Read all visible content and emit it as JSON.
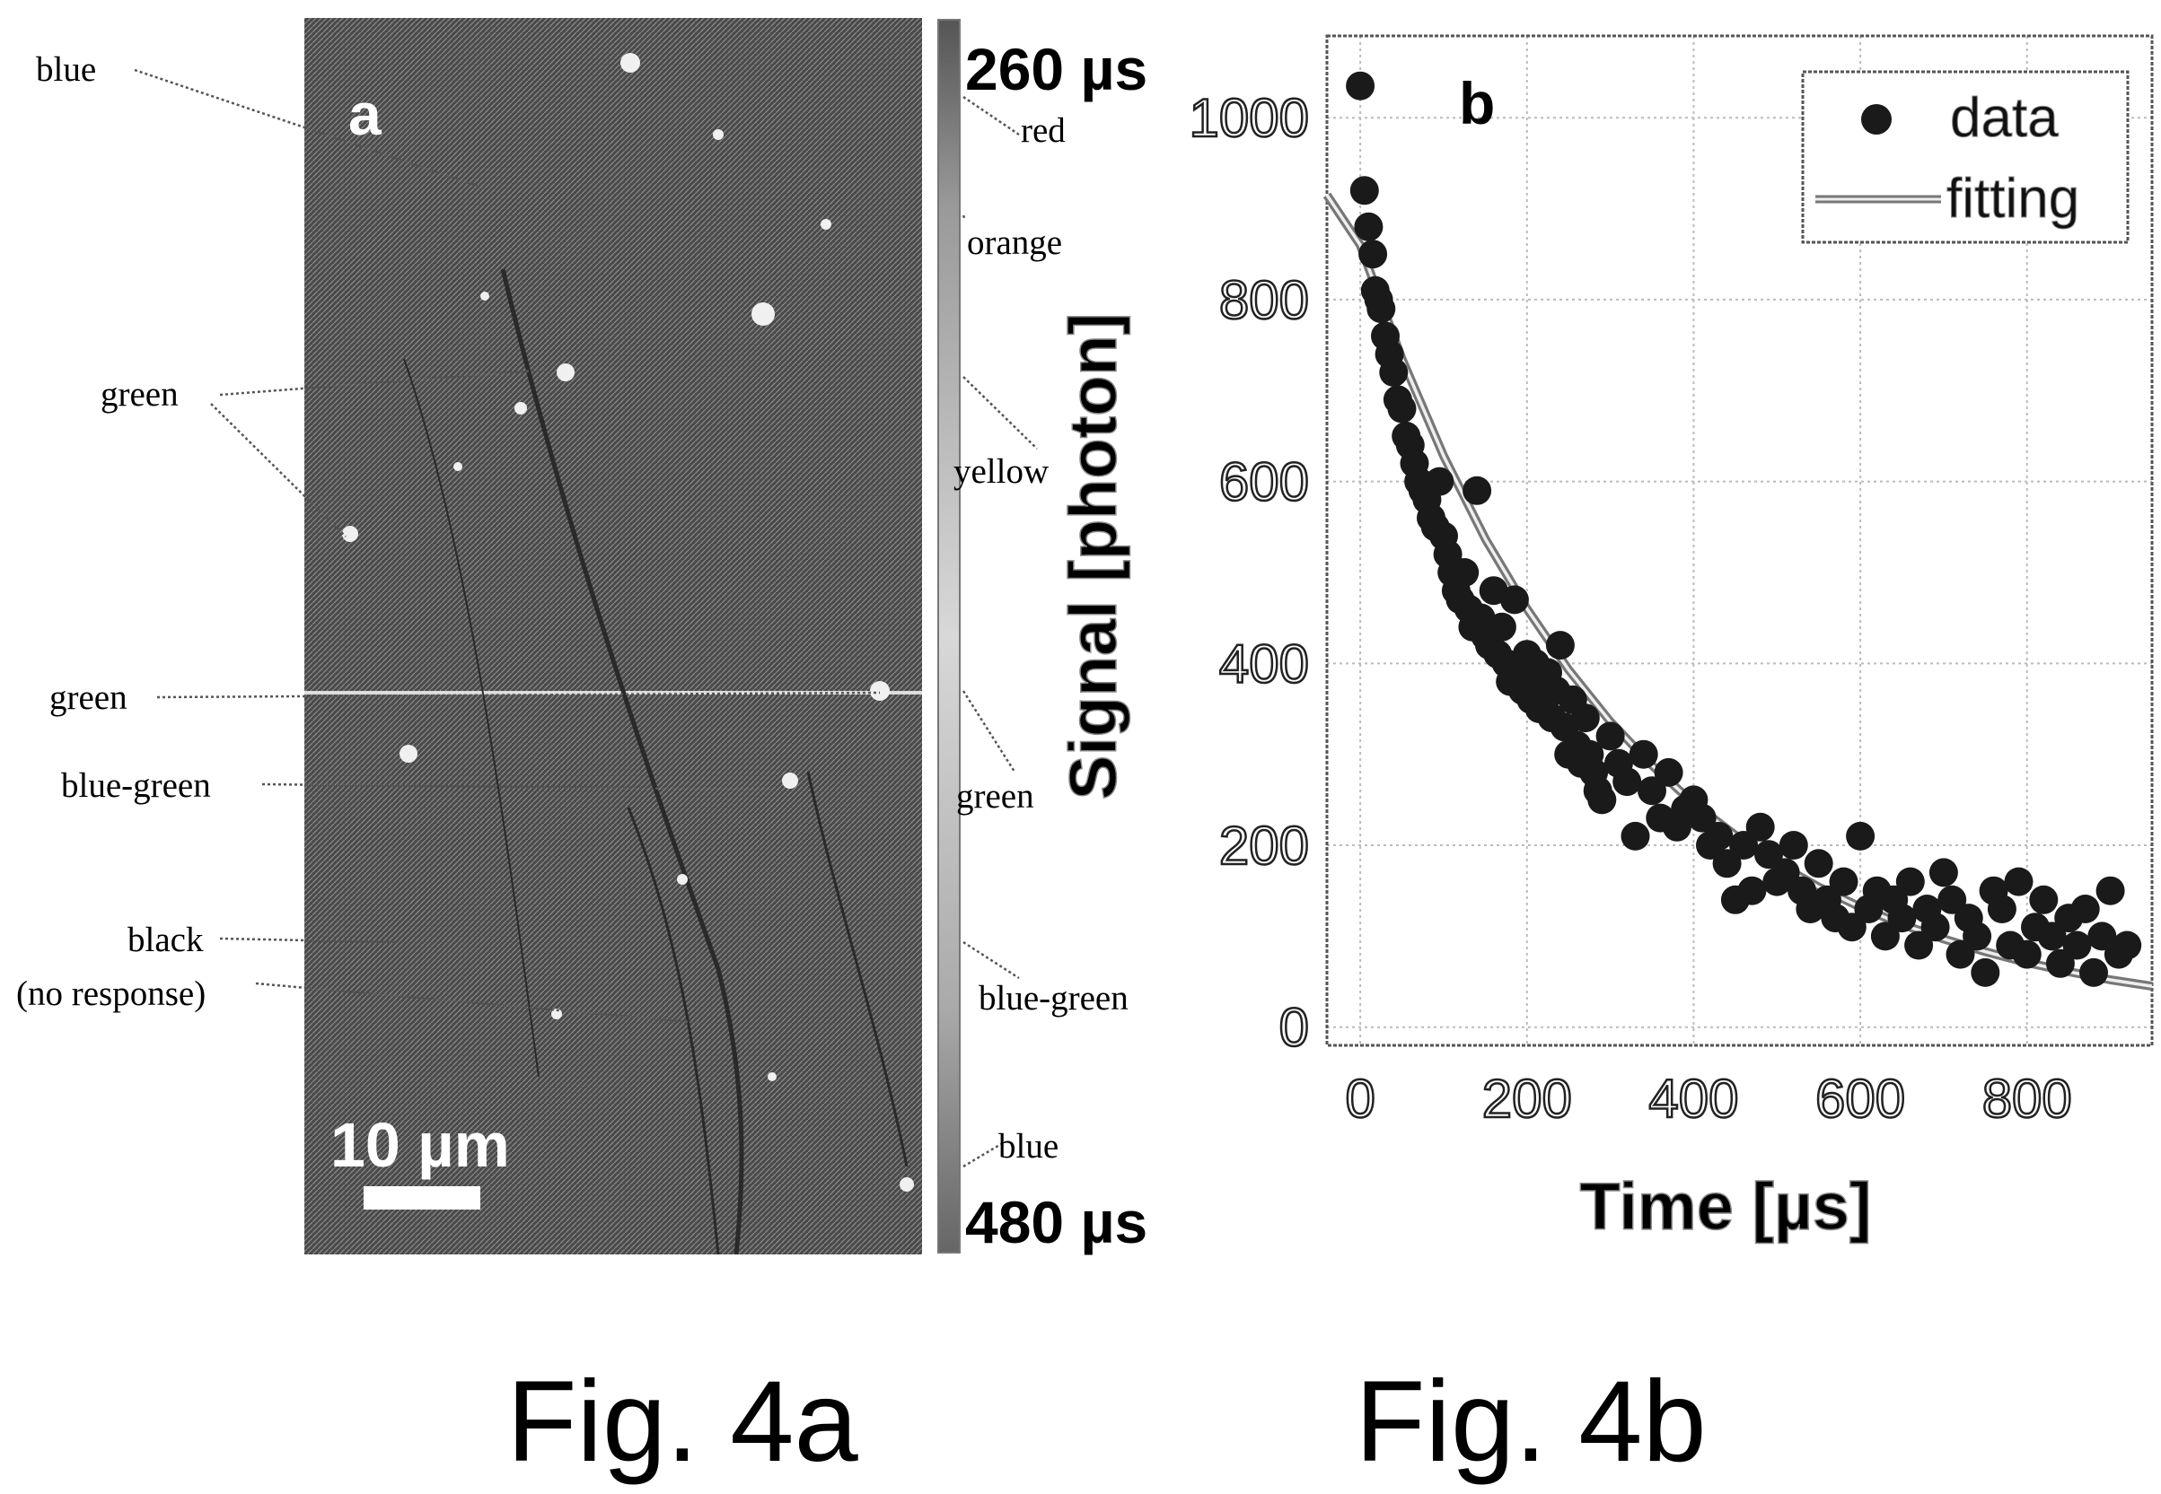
{
  "panel_a": {
    "letter": "a",
    "scalebar_label": "10 µm",
    "colorbar": {
      "top_label": "260 µs",
      "bottom_label": "480 µs"
    },
    "left_annotations": [
      "blue",
      "green",
      "green",
      "blue-green",
      "black",
      "(no response)"
    ],
    "right_annotations": [
      "red",
      "orange",
      "yellow",
      "green",
      "blue-green",
      "blue"
    ]
  },
  "captions": {
    "fig_a": "Fig. 4a",
    "fig_b": "Fig. 4b"
  },
  "chart_data": {
    "type": "scatter",
    "panel_label": "b",
    "xlabel": "Time [µs]",
    "ylabel": "Signal [photon]",
    "xlim": [
      -40,
      950
    ],
    "ylim": [
      -20,
      1090
    ],
    "xticks": [
      0,
      200,
      400,
      600,
      800
    ],
    "yticks": [
      0,
      200,
      400,
      600,
      800,
      1000
    ],
    "grid": true,
    "legend_position": "top-right",
    "series": [
      {
        "name": "data",
        "style": "markers",
        "x": [
          0,
          5,
          10,
          15,
          18,
          22,
          25,
          30,
          35,
          40,
          45,
          50,
          55,
          60,
          65,
          70,
          75,
          80,
          85,
          90,
          95,
          100,
          105,
          110,
          115,
          120,
          125,
          130,
          135,
          140,
          145,
          150,
          155,
          160,
          165,
          170,
          175,
          180,
          185,
          190,
          195,
          200,
          205,
          210,
          215,
          220,
          225,
          230,
          235,
          240,
          245,
          250,
          255,
          260,
          265,
          270,
          275,
          280,
          285,
          290,
          300,
          310,
          320,
          330,
          340,
          350,
          360,
          370,
          380,
          390,
          400,
          410,
          420,
          430,
          440,
          450,
          460,
          470,
          480,
          490,
          500,
          510,
          520,
          530,
          540,
          550,
          560,
          570,
          580,
          590,
          600,
          610,
          620,
          630,
          640,
          650,
          660,
          670,
          680,
          690,
          700,
          710,
          720,
          730,
          740,
          750,
          760,
          770,
          780,
          790,
          800,
          810,
          820,
          830,
          840,
          850,
          860,
          870,
          880,
          890,
          900,
          910,
          920
        ],
        "y": [
          1035,
          920,
          880,
          850,
          810,
          800,
          790,
          760,
          740,
          720,
          690,
          680,
          650,
          640,
          620,
          600,
          590,
          580,
          560,
          550,
          600,
          540,
          520,
          500,
          480,
          470,
          500,
          460,
          440,
          590,
          450,
          430,
          420,
          480,
          410,
          440,
          400,
          380,
          470,
          390,
          370,
          410,
          360,
          400,
          350,
          380,
          390,
          340,
          370,
          420,
          330,
          300,
          360,
          310,
          290,
          340,
          300,
          280,
          260,
          250,
          320,
          290,
          270,
          210,
          300,
          260,
          230,
          280,
          220,
          240,
          250,
          230,
          200,
          210,
          180,
          140,
          200,
          150,
          220,
          190,
          160,
          170,
          200,
          150,
          130,
          180,
          140,
          120,
          160,
          110,
          210,
          130,
          150,
          100,
          140,
          120,
          160,
          90,
          130,
          110,
          170,
          140,
          80,
          120,
          100,
          60,
          150,
          130,
          90,
          160,
          80,
          110,
          140,
          100,
          70,
          120,
          90,
          130,
          60,
          100,
          150,
          80,
          90
        ]
      },
      {
        "name": "fitting",
        "style": "line",
        "model": "exponential decay",
        "x": [
          -40,
          0,
          50,
          100,
          150,
          200,
          250,
          300,
          350,
          400,
          450,
          500,
          550,
          600,
          650,
          700,
          750,
          800,
          850,
          900,
          950
        ],
        "y": [
          915,
          860,
          735,
          628,
          537,
          460,
          393,
          336,
          288,
          246,
          211,
          180,
          154,
          132,
          113,
          97,
          83,
          71,
          61,
          52,
          45
        ]
      }
    ]
  }
}
